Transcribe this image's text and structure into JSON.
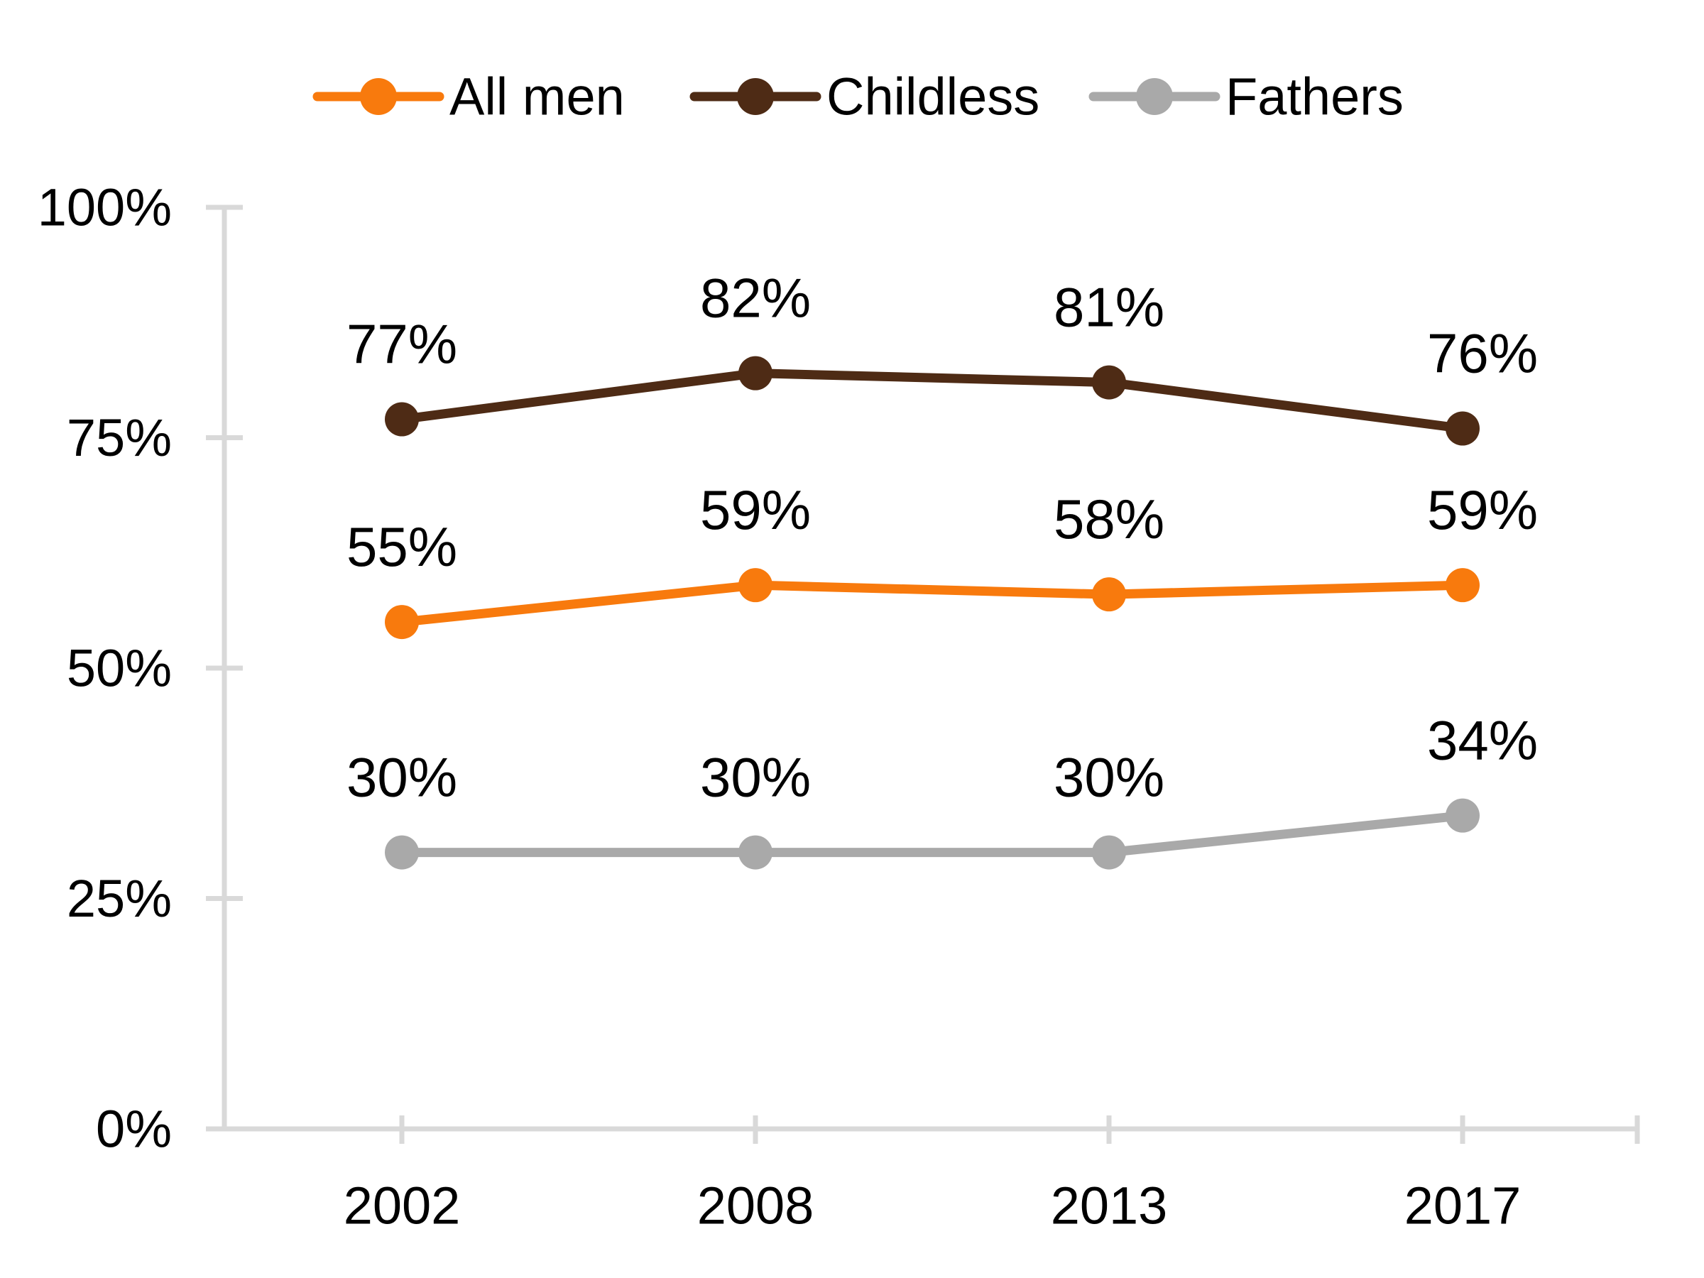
{
  "chart_data": {
    "type": "line",
    "categories": [
      "2002",
      "2008",
      "2013",
      "2017"
    ],
    "series": [
      {
        "name": "All men",
        "color": "#F87A0D",
        "values": [
          55,
          59,
          58,
          59
        ],
        "point_labels": [
          "55%",
          "59%",
          "58%",
          "59%"
        ]
      },
      {
        "name": "Childless",
        "color": "#4E2B15",
        "values": [
          77,
          82,
          81,
          76
        ],
        "point_labels": [
          "77%",
          "82%",
          "81%",
          "76%"
        ]
      },
      {
        "name": "Fathers",
        "color": "#A9A9A9",
        "values": [
          30,
          30,
          30,
          34
        ],
        "point_labels": [
          "30%",
          "30%",
          "30%",
          "34%"
        ]
      }
    ],
    "x_axis": {
      "tick_labels": [
        "2002",
        "2008",
        "2013",
        "2017"
      ]
    },
    "y_axis": {
      "range": [
        0,
        100
      ],
      "tick_values": [
        0,
        25,
        50,
        75,
        100
      ],
      "tick_labels": [
        "0%",
        "25%",
        "50%",
        "75%",
        "100%"
      ]
    },
    "legend": {
      "position": "top",
      "entries": [
        "All men",
        "Childless",
        "Fathers"
      ]
    },
    "grid": false,
    "axis_color": "#D9D9D9",
    "text_color": "#000000",
    "background_color": "#FFFFFF"
  }
}
